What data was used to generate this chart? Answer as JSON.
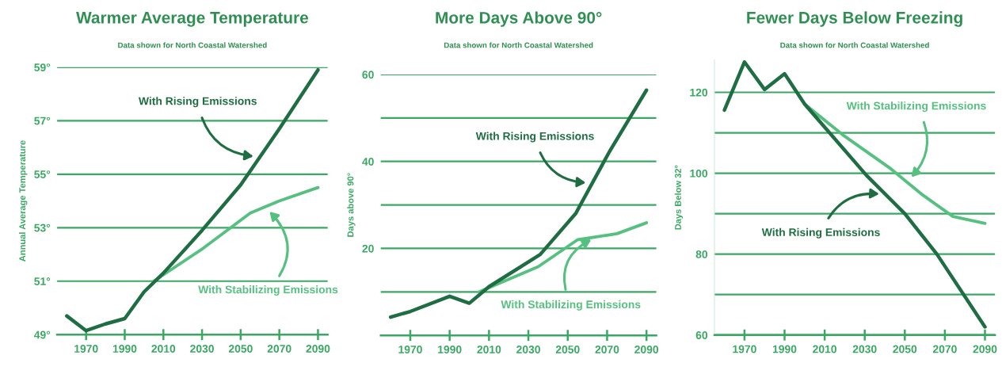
{
  "chart_data": [
    {
      "type": "line",
      "title": "Warmer Average Temperature",
      "subtitle": "Data shown for North Coastal Watershed",
      "ylabel": "Annual Average Temperature",
      "xlim": [
        1955,
        2095
      ],
      "xticks": [
        1970,
        1990,
        2010,
        2030,
        2050,
        2070,
        2090
      ],
      "ylim": [
        49,
        59
      ],
      "yticks": [
        {
          "value": 49,
          "label": "49°"
        },
        {
          "value": 51,
          "label": "51°"
        },
        {
          "value": 53,
          "label": "53°"
        },
        {
          "value": 55,
          "label": "55°"
        },
        {
          "value": 57,
          "label": "57°"
        },
        {
          "value": 59,
          "label": "59°"
        }
      ],
      "grid": "y",
      "marker": "none",
      "line_style": "solid",
      "series": [
        {
          "name": "With Rising Emissions",
          "color": "#1f6e43",
          "x": [
            1960,
            1970,
            1980,
            1990,
            2000,
            2010,
            2030,
            2050,
            2070,
            2090
          ],
          "values": [
            49.7,
            49.15,
            49.4,
            49.6,
            50.6,
            51.3,
            52.9,
            54.6,
            56.7,
            58.9
          ]
        },
        {
          "name": "With Stabilizing Emissions",
          "color": "#55c07f",
          "x": [
            2005,
            2030,
            2055,
            2070,
            2090
          ],
          "values": [
            51.0,
            52.2,
            53.55,
            54.0,
            54.5
          ]
        }
      ]
    },
    {
      "type": "line",
      "title": "More Days Above 90°",
      "subtitle": "Data shown for North Coastal Watershed",
      "ylabel": "Days above 90°",
      "xlim": [
        1955,
        2095
      ],
      "xticks": [
        1970,
        1990,
        2010,
        2030,
        2050,
        2070,
        2090
      ],
      "ylim": [
        0,
        60
      ],
      "yticks": [
        {
          "value": 10,
          "label": null
        },
        20,
        {
          "value": 30,
          "label": null
        },
        40,
        {
          "value": 50,
          "label": null
        },
        60
      ],
      "grid": "y",
      "marker": "none",
      "line_style": "solid",
      "series": [
        {
          "name": "With Rising Emissions",
          "color": "#1f6e43",
          "x": [
            1960,
            1970,
            1990,
            2000,
            2010,
            2036,
            2054,
            2071,
            2090
          ],
          "values": [
            4.2,
            5.5,
            9.0,
            7.4,
            11.2,
            18.6,
            28.0,
            42.1,
            56.4
          ]
        },
        {
          "name": "With Stabilizing Emissions",
          "color": "#55c07f",
          "x": [
            2005,
            2035,
            2055,
            2075,
            2090
          ],
          "values": [
            10.0,
            15.8,
            22.0,
            23.4,
            25.9
          ]
        }
      ]
    },
    {
      "type": "line",
      "title": "Fewer Days Below Freezing",
      "subtitle": "Data shown for North Coastal Watershed",
      "ylabel": "Days Below 32°",
      "xlim": [
        1955,
        2095
      ],
      "xticks": [
        1970,
        1990,
        2010,
        2030,
        2050,
        2070,
        2090
      ],
      "ylim": [
        60,
        128
      ],
      "yticks": [
        60,
        {
          "value": 70,
          "label": null
        },
        80,
        {
          "value": 90,
          "label": null
        },
        100,
        {
          "value": 110,
          "label": null
        },
        120
      ],
      "grid": "y",
      "marker": "none",
      "line_style": "solid",
      "series": [
        {
          "name": "With Rising Emissions",
          "color": "#1f6e43",
          "x": [
            1960,
            1970,
            1980,
            1990,
            2000,
            2031,
            2050,
            2066,
            2090
          ],
          "values": [
            115.6,
            127.5,
            120.7,
            124.6,
            117.1,
            99.4,
            90.0,
            80.0,
            62.0
          ]
        },
        {
          "name": "With Stabilizing Emissions",
          "color": "#55c07f",
          "x": [
            2000,
            2019,
            2043,
            2059,
            2074,
            2090
          ],
          "values": [
            117.1,
            109.5,
            101.1,
            94.6,
            89.3,
            87.6
          ]
        }
      ]
    }
  ]
}
